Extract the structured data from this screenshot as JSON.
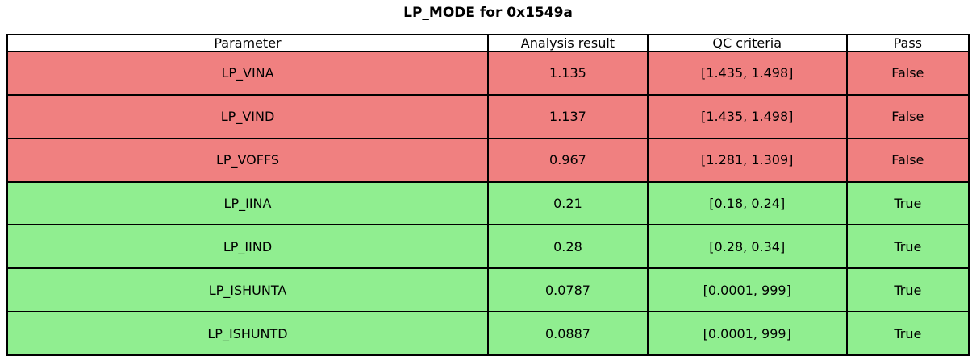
{
  "title": "LP_MODE for 0x1549a",
  "colors": {
    "fail_row": "#f08080",
    "pass_row": "#90ee90",
    "header_bg": "#ffffff",
    "border": "#000000"
  },
  "chart_data": {
    "type": "table",
    "title": "LP_MODE for 0x1549a",
    "columns": [
      "Parameter",
      "Analysis result",
      "QC criteria",
      "Pass"
    ],
    "rows": [
      [
        "LP_VINA",
        "1.135",
        "[1.435, 1.498]",
        "False"
      ],
      [
        "LP_VIND",
        "1.137",
        "[1.435, 1.498]",
        "False"
      ],
      [
        "LP_VOFFS",
        "0.967",
        "[1.281, 1.309]",
        "False"
      ],
      [
        "LP_IINA",
        "0.21",
        "[0.18, 0.24]",
        "True"
      ],
      [
        "LP_IIND",
        "0.28",
        "[0.28, 0.34]",
        "True"
      ],
      [
        "LP_ISHUNTA",
        "0.0787",
        "[0.0001, 999]",
        "True"
      ],
      [
        "LP_ISHUNTD",
        "0.0887",
        "[0.0001, 999]",
        "True"
      ]
    ],
    "row_status": [
      "fail",
      "fail",
      "fail",
      "pass",
      "pass",
      "pass",
      "pass"
    ],
    "layout": {
      "grid": true,
      "header_position": "top",
      "column_width_pct": [
        50.0,
        16.6,
        20.7,
        12.7
      ]
    }
  }
}
